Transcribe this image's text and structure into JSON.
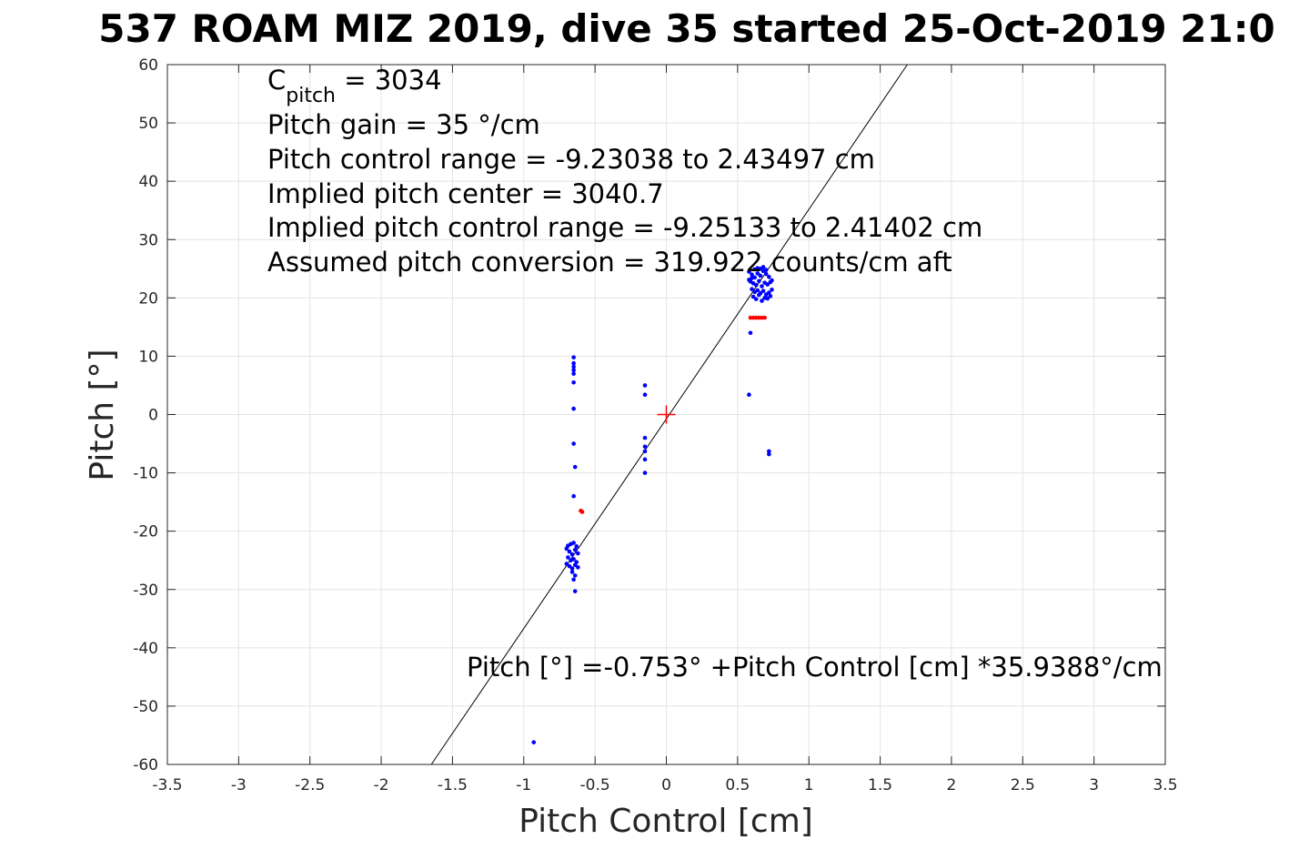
{
  "chart_data": {
    "type": "scatter",
    "title": "537 ROAM MIZ 2019, dive 35 started 25-Oct-2019 21:0",
    "xlabel": "Pitch Control [cm]",
    "ylabel": "Pitch [°]",
    "xlim": [
      -3.5,
      3.5
    ],
    "ylim": [
      -60,
      60
    ],
    "xticks": [
      -3.5,
      -3,
      -2.5,
      -2,
      -1.5,
      -1,
      -0.5,
      0,
      0.5,
      1,
      1.5,
      2,
      2.5,
      3,
      3.5
    ],
    "yticks": [
      -60,
      -50,
      -40,
      -30,
      -20,
      -10,
      0,
      10,
      20,
      30,
      40,
      50,
      60
    ],
    "xtick_labels": [
      "-3.5",
      "-3",
      "-2.5",
      "-2",
      "-1.5",
      "-1",
      "-0.5",
      "0",
      "0.5",
      "1",
      "1.5",
      "2",
      "2.5",
      "3",
      "3.5"
    ],
    "ytick_labels": [
      "-60",
      "-50",
      "-40",
      "-30",
      "-20",
      "-10",
      "0",
      "10",
      "20",
      "30",
      "40",
      "50",
      "60"
    ],
    "grid": true,
    "annotations": {
      "cpitch_main": "C",
      "cpitch_sub": "pitch",
      "cpitch_value": " = 3034",
      "lines": [
        "Pitch gain = 35 °/cm",
        "Pitch control range = -9.23038 to 2.43497 cm",
        "Implied pitch center = 3040.7",
        "Implied pitch control range = -9.25133 to 2.41402 cm",
        "Assumed pitch conversion = 319.922 counts/cm aft"
      ],
      "fit_equation": "Pitch [°] =-0.753° +Pitch Control [cm] *35.9388°/cm"
    },
    "fit_line": {
      "intercept": -0.753,
      "slope": 35.9388,
      "color": "#000000"
    },
    "center_marker": {
      "x": 0,
      "y": 0,
      "color": "#ff0000"
    },
    "series": [
      {
        "color": "#0000ff",
        "points": [
          [
            0.58,
            24.5
          ],
          [
            0.6,
            24.0
          ],
          [
            0.62,
            23.5
          ],
          [
            0.64,
            24.2
          ],
          [
            0.66,
            23.8
          ],
          [
            0.68,
            24.6
          ],
          [
            0.7,
            24.1
          ],
          [
            0.72,
            23.6
          ],
          [
            0.59,
            22.8
          ],
          [
            0.61,
            22.5
          ],
          [
            0.63,
            22.2
          ],
          [
            0.65,
            22.9
          ],
          [
            0.67,
            22.0
          ],
          [
            0.69,
            22.6
          ],
          [
            0.71,
            22.3
          ],
          [
            0.73,
            22.7
          ],
          [
            0.6,
            21.5
          ],
          [
            0.62,
            21.0
          ],
          [
            0.64,
            21.3
          ],
          [
            0.66,
            20.8
          ],
          [
            0.68,
            21.2
          ],
          [
            0.7,
            20.6
          ],
          [
            0.72,
            20.9
          ],
          [
            0.74,
            21.4
          ],
          [
            0.61,
            20.2
          ],
          [
            0.63,
            19.8
          ],
          [
            0.65,
            20.5
          ],
          [
            0.67,
            19.5
          ],
          [
            0.69,
            20.0
          ],
          [
            0.71,
            19.9
          ],
          [
            0.73,
            20.3
          ],
          [
            0.66,
            25.0
          ],
          [
            0.68,
            25.3
          ],
          [
            0.7,
            24.8
          ],
          [
            0.64,
            25.1
          ],
          [
            0.62,
            24.9
          ],
          [
            0.58,
            23.1
          ],
          [
            0.6,
            23.4
          ],
          [
            0.74,
            23.0
          ],
          [
            0.59,
            14.0
          ],
          [
            0.58,
            3.4
          ],
          [
            0.72,
            -6.3
          ],
          [
            0.72,
            -6.8
          ],
          [
            -0.65,
            9.8
          ],
          [
            -0.65,
            8.8
          ],
          [
            -0.65,
            8.2
          ],
          [
            -0.65,
            7.6
          ],
          [
            -0.65,
            7.0
          ],
          [
            -0.65,
            5.5
          ],
          [
            -0.65,
            1.0
          ],
          [
            -0.65,
            -5.0
          ],
          [
            -0.64,
            -9.0
          ],
          [
            -0.65,
            -14.0
          ],
          [
            -0.15,
            5.0
          ],
          [
            -0.15,
            3.4
          ],
          [
            -0.15,
            -4.0
          ],
          [
            -0.15,
            -5.5
          ],
          [
            -0.15,
            -6.3
          ],
          [
            -0.15,
            -7.7
          ],
          [
            -0.15,
            -10.0
          ],
          [
            -0.7,
            -23.0
          ],
          [
            -0.68,
            -23.5
          ],
          [
            -0.66,
            -24.0
          ],
          [
            -0.64,
            -23.2
          ],
          [
            -0.62,
            -23.8
          ],
          [
            -0.69,
            -24.5
          ],
          [
            -0.67,
            -25.0
          ],
          [
            -0.65,
            -24.8
          ],
          [
            -0.63,
            -25.3
          ],
          [
            -0.7,
            -25.6
          ],
          [
            -0.68,
            -26.0
          ],
          [
            -0.66,
            -26.4
          ],
          [
            -0.64,
            -25.8
          ],
          [
            -0.62,
            -26.2
          ],
          [
            -0.69,
            -22.5
          ],
          [
            -0.67,
            -22.2
          ],
          [
            -0.65,
            -22.0
          ],
          [
            -0.63,
            -22.6
          ],
          [
            -0.66,
            -27.0
          ],
          [
            -0.64,
            -27.6
          ],
          [
            -0.65,
            -28.3
          ],
          [
            -0.64,
            -30.3
          ],
          [
            -0.93,
            -56.2
          ]
        ]
      },
      {
        "color": "#ff0000",
        "points": [
          [
            0.59,
            16.6
          ],
          [
            0.61,
            16.6
          ],
          [
            0.63,
            16.6
          ],
          [
            0.65,
            16.6
          ],
          [
            0.67,
            16.6
          ],
          [
            0.69,
            16.6
          ],
          [
            -0.59,
            -16.7
          ],
          [
            -0.6,
            -16.5
          ]
        ]
      }
    ]
  }
}
